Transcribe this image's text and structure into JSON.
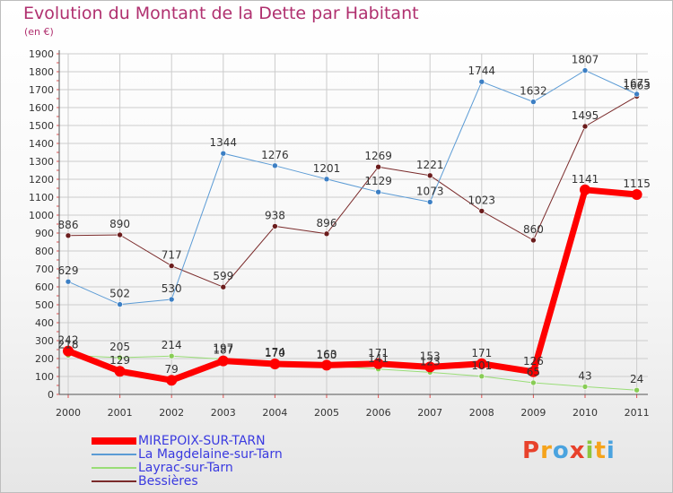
{
  "title": "Evolution du Montant de la Dette par Habitant",
  "subtitle": "(en €)",
  "colors": {
    "title": "#b0306f",
    "legend_text": "#3a3ae0",
    "grid": "#cccccc",
    "axis": "#555555"
  },
  "logo": {
    "letters": [
      "P",
      "r",
      "o",
      "x",
      "i",
      "t",
      "i"
    ],
    "colors": [
      "#e8412b",
      "#f5a31b",
      "#4aa3df",
      "#e8412b",
      "#8dc63f",
      "#f5a31b",
      "#4aa3df"
    ]
  },
  "chart_data": {
    "type": "line",
    "title": "Evolution du Montant de la Dette par Habitant",
    "subtitle": "(en €)",
    "xlabel": "",
    "ylabel": "",
    "ylim": [
      0,
      1900
    ],
    "yticks": [
      0,
      100,
      200,
      300,
      400,
      500,
      600,
      700,
      800,
      900,
      1000,
      1100,
      1200,
      1300,
      1400,
      1500,
      1600,
      1700,
      1800,
      1900
    ],
    "grid": true,
    "legend_position": "bottom-left",
    "categories": [
      "2000",
      "2001",
      "2002",
      "2003",
      "2004",
      "2005",
      "2006",
      "2007",
      "2008",
      "2009",
      "2010",
      "2011"
    ],
    "series": [
      {
        "name": "MIREPOIX-SUR-TARN",
        "color": "#ff0000",
        "line_width": 7,
        "marker_color": "#ff0000",
        "values": [
          242,
          129,
          79,
          187,
          170,
          163,
          171,
          153,
          171,
          126,
          1141,
          1115
        ],
        "labels": [
          "242",
          "129",
          "79",
          "187",
          "170",
          "163",
          "171",
          "153",
          "171",
          "126",
          "1141",
          "1115"
        ]
      },
      {
        "name": "La Magdelaine-sur-Tarn",
        "color": "#5b9bd5",
        "line_width": 1,
        "marker_color": "#3c7fc4",
        "values": [
          629,
          502,
          530,
          1344,
          1276,
          1201,
          1129,
          1073,
          1744,
          1632,
          1807,
          1675
        ],
        "labels": [
          "629",
          "502",
          "530",
          "1344",
          "1276",
          "1201",
          "1129",
          "1073",
          "1744",
          "1632",
          "1807",
          "1675"
        ]
      },
      {
        "name": "Layrac-sur-Tarn",
        "color": "#99dd77",
        "line_width": 1,
        "marker_color": "#88cc55",
        "values": [
          218,
          205,
          214,
          197,
          174,
          160,
          141,
          123,
          101,
          65,
          43,
          24
        ],
        "labels": [
          "218",
          "205",
          "214",
          "197",
          "174",
          "160",
          "141",
          "123",
          "101",
          "65",
          "43",
          "24"
        ]
      },
      {
        "name": "Bessières",
        "color": "#7a2a2a",
        "line_width": 1,
        "marker_color": "#6b1c1c",
        "values": [
          886,
          890,
          717,
          599,
          938,
          896,
          1269,
          1221,
          1023,
          860,
          1495,
          1663
        ],
        "labels": [
          "886",
          "890",
          "717",
          "599",
          "938",
          "896",
          "1269",
          "1221",
          "1023",
          "860",
          "1495",
          "1663"
        ]
      }
    ]
  }
}
